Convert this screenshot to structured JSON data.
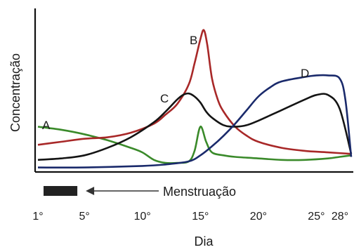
{
  "chart_data": {
    "type": "line",
    "title": "",
    "xlabel": "Dia",
    "ylabel": "Concentração",
    "xlim": [
      1,
      28
    ],
    "ylim": [
      0,
      100
    ],
    "x_ticks": [
      {
        "value": 1,
        "label": "1°"
      },
      {
        "value": 5,
        "label": "5°"
      },
      {
        "value": 10,
        "label": "10°"
      },
      {
        "value": 15,
        "label": "15°"
      },
      {
        "value": 20,
        "label": "20°"
      },
      {
        "value": 25,
        "label": "25°"
      },
      {
        "value": 28,
        "label": "28°"
      }
    ],
    "annotation": {
      "label": "Menstruação",
      "x_start": 1,
      "x_end": 5
    },
    "series": [
      {
        "name": "A",
        "color": "#3a8a2a",
        "x": [
          1,
          3,
          5,
          7,
          9,
          10,
          11,
          12,
          13,
          14,
          14.5,
          15,
          15.5,
          16,
          17,
          18,
          20,
          22,
          24,
          26,
          27,
          28
        ],
        "y": [
          30,
          28,
          25,
          21,
          16,
          13,
          8,
          6,
          6,
          7,
          14,
          30,
          20,
          13,
          11,
          10,
          9,
          8,
          8,
          9,
          10,
          11
        ]
      },
      {
        "name": "B",
        "color": "#a82828",
        "x": [
          1,
          3,
          5,
          7,
          9,
          11,
          12,
          13,
          14,
          14.5,
          15,
          15.3,
          15.6,
          16,
          16.5,
          17,
          18,
          19,
          20,
          22,
          24,
          26,
          28
        ],
        "y": [
          18,
          20,
          22,
          23,
          26,
          32,
          38,
          45,
          58,
          72,
          88,
          94,
          84,
          62,
          48,
          40,
          30,
          24,
          20,
          16,
          14,
          13,
          12
        ]
      },
      {
        "name": "C",
        "color": "#141414",
        "x": [
          1,
          3,
          5,
          7,
          9,
          11,
          12,
          13,
          13.5,
          14,
          14.5,
          15,
          15.5,
          16,
          17,
          18,
          19,
          20,
          22,
          24,
          25,
          26,
          27,
          28
        ],
        "y": [
          8,
          9,
          11,
          16,
          23,
          33,
          40,
          48,
          51,
          52,
          50,
          46,
          40,
          36,
          31,
          30,
          31,
          34,
          41,
          48,
          51,
          51,
          42,
          12
        ]
      },
      {
        "name": "D",
        "color": "#1a2a6b",
        "x": [
          1,
          5,
          10,
          12,
          14,
          15,
          16,
          17,
          18,
          19,
          20,
          21,
          22,
          24,
          25,
          26,
          27,
          27.5,
          28
        ],
        "y": [
          3,
          3,
          4,
          5,
          7,
          11,
          17,
          24,
          32,
          41,
          50,
          56,
          60,
          63,
          64,
          64,
          62,
          48,
          10
        ]
      }
    ]
  }
}
